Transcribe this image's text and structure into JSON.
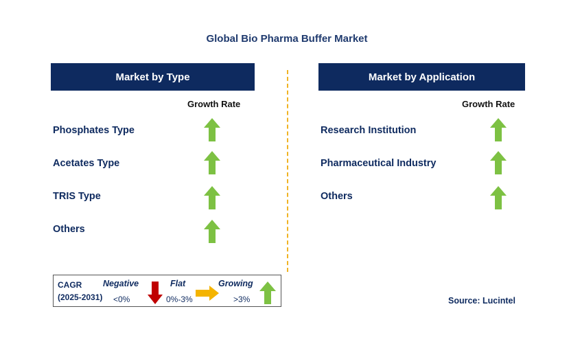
{
  "title": "Global Bio Pharma Buffer Market",
  "left_panel": {
    "header": "Market by Type",
    "growth_label": "Growth Rate",
    "items": [
      {
        "label": "Phosphates Type",
        "trend": "up"
      },
      {
        "label": "Acetates Type",
        "trend": "up"
      },
      {
        "label": "TRIS Type",
        "trend": "up"
      },
      {
        "label": "Others",
        "trend": "up"
      }
    ]
  },
  "right_panel": {
    "header": "Market by Application",
    "growth_label": "Growth Rate",
    "items": [
      {
        "label": "Research Institution",
        "trend": "up"
      },
      {
        "label": "Pharmaceutical Industry",
        "trend": "up"
      },
      {
        "label": "Others",
        "trend": "up"
      }
    ]
  },
  "legend": {
    "cagr_label": "CAGR",
    "period": "(2025-2031)",
    "negative": {
      "label": "Negative",
      "range": "<0%"
    },
    "flat": {
      "label": "Flat",
      "range": "0%-3%"
    },
    "growing": {
      "label": "Growing",
      "range": ">3%"
    }
  },
  "source": "Source: Lucintel",
  "colors": {
    "header_bg": "#0e2a5f",
    "text_navy": "#0e2a5f",
    "up_arrow": "#7dc143",
    "down_arrow": "#c00000",
    "flat_arrow": "#f4b400",
    "divider": "#f0b323"
  }
}
